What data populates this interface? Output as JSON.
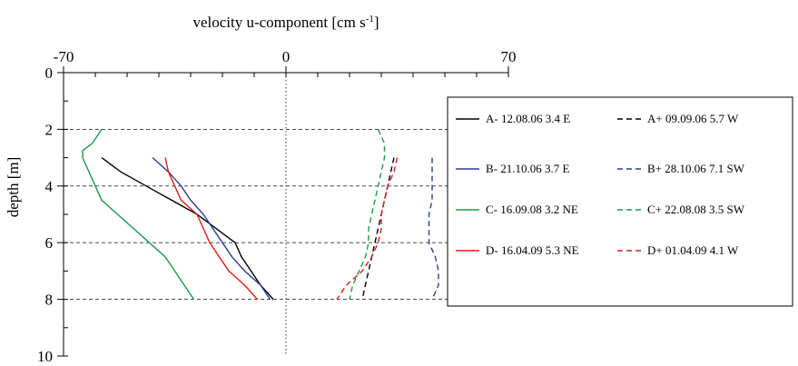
{
  "chart_data": {
    "type": "line",
    "title": "",
    "xlabel": "velocity u-component [cm s-1]",
    "xlabel_main": "velocity u-component [cm s",
    "xlabel_sup": "-1",
    "xlabel_end": "]",
    "ylabel": "depth [m]",
    "xlim": [
      -70,
      70
    ],
    "ylim": [
      10,
      0
    ],
    "x_ticks": [
      {
        "value": -70,
        "label": "-70"
      },
      {
        "value": 0,
        "label": "0"
      },
      {
        "value": 70,
        "label": "70"
      }
    ],
    "y_ticks": [
      {
        "value": 0,
        "label": "0"
      },
      {
        "value": 2,
        "label": "2"
      },
      {
        "value": 4,
        "label": "4"
      },
      {
        "value": 6,
        "label": "6"
      },
      {
        "value": 8,
        "label": "8"
      },
      {
        "value": 10,
        "label": "10"
      }
    ],
    "horizontal_dashed_grid": [
      2,
      4,
      6,
      8
    ],
    "vertical_dotted_zero": true,
    "legend_position": "right",
    "series": [
      {
        "name": "A- 12.08.06 3.4 E",
        "color": "#000000",
        "dash": "solid",
        "points": [
          [
            -58,
            3
          ],
          [
            -52,
            3.5
          ],
          [
            -44,
            4
          ],
          [
            -36,
            4.5
          ],
          [
            -28,
            5
          ],
          [
            -22,
            5.5
          ],
          [
            -16,
            6
          ],
          [
            -14,
            6.5
          ],
          [
            -11,
            7
          ],
          [
            -8,
            7.5
          ],
          [
            -4,
            8
          ]
        ]
      },
      {
        "name": "B- 21.10.06 3.7 E",
        "color": "#2b3f8f",
        "dash": "solid",
        "points": [
          [
            -42,
            3
          ],
          [
            -37,
            3.5
          ],
          [
            -33,
            4
          ],
          [
            -30,
            4.5
          ],
          [
            -26,
            5
          ],
          [
            -23,
            5.5
          ],
          [
            -20,
            6
          ],
          [
            -17,
            6.5
          ],
          [
            -13,
            7
          ],
          [
            -8,
            7.5
          ],
          [
            -5,
            8
          ]
        ]
      },
      {
        "name": "C- 16.09.08 3.2 NE",
        "color": "#1a9a4a",
        "dash": "solid",
        "points": [
          [
            -58,
            2
          ],
          [
            -61,
            2.5
          ],
          [
            -64,
            2.75
          ],
          [
            -64,
            3
          ],
          [
            -62,
            3.5
          ],
          [
            -60,
            4
          ],
          [
            -58,
            4.5
          ],
          [
            -53,
            5
          ],
          [
            -48,
            5.5
          ],
          [
            -43,
            6
          ],
          [
            -38,
            6.5
          ],
          [
            -35,
            7
          ],
          [
            -32,
            7.5
          ],
          [
            -29,
            8
          ]
        ]
      },
      {
        "name": "D- 16.04.09 5.3 NE",
        "color": "#e31a1c",
        "dash": "solid",
        "points": [
          [
            -38,
            3
          ],
          [
            -37,
            3.5
          ],
          [
            -35,
            4
          ],
          [
            -33,
            4.5
          ],
          [
            -28,
            5
          ],
          [
            -26,
            5.5
          ],
          [
            -24,
            6
          ],
          [
            -21,
            6.5
          ],
          [
            -18,
            7
          ],
          [
            -13,
            7.5
          ],
          [
            -9,
            8
          ]
        ]
      },
      {
        "name": "A+ 09.09.06 5.7 W",
        "color": "#000000",
        "dash": "dashed",
        "points": [
          [
            34,
            3
          ],
          [
            33,
            3.5
          ],
          [
            32,
            4
          ],
          [
            31,
            4.5
          ],
          [
            30,
            5
          ],
          [
            29,
            5.5
          ],
          [
            28,
            6
          ],
          [
            27,
            6.5
          ],
          [
            26,
            7
          ],
          [
            25,
            7.5
          ],
          [
            24,
            8
          ]
        ]
      },
      {
        "name": "B+ 28.10.06 7.1 SW",
        "color": "#2b3f8f",
        "dash": "dashed",
        "points": [
          [
            46,
            3
          ],
          [
            46,
            3.5
          ],
          [
            46,
            4
          ],
          [
            46,
            4.5
          ],
          [
            45,
            5
          ],
          [
            45,
            5.5
          ],
          [
            45,
            6
          ],
          [
            47,
            6.5
          ],
          [
            48,
            7
          ],
          [
            48,
            7.5
          ],
          [
            46,
            8
          ]
        ]
      },
      {
        "name": "C+ 22.08.08 3.5 SW",
        "color": "#1a9a4a",
        "dash": "dashed",
        "points": [
          [
            29,
            2
          ],
          [
            31,
            2.5
          ],
          [
            31,
            3
          ],
          [
            30,
            3.5
          ],
          [
            29,
            4
          ],
          [
            28,
            4.5
          ],
          [
            27,
            5
          ],
          [
            26,
            5.5
          ],
          [
            26,
            6
          ],
          [
            25,
            6.5
          ],
          [
            23,
            7
          ],
          [
            21,
            7.5
          ],
          [
            20,
            8
          ]
        ]
      },
      {
        "name": "D+ 01.04.09 4.1 W",
        "color": "#e31a1c",
        "dash": "dashed",
        "points": [
          [
            35,
            3
          ],
          [
            34,
            3.5
          ],
          [
            32,
            4
          ],
          [
            31,
            4.5
          ],
          [
            30,
            5
          ],
          [
            30,
            5.5
          ],
          [
            29,
            6
          ],
          [
            27,
            6.5
          ],
          [
            24,
            7
          ],
          [
            19,
            7.5
          ],
          [
            16,
            8
          ]
        ]
      }
    ]
  }
}
